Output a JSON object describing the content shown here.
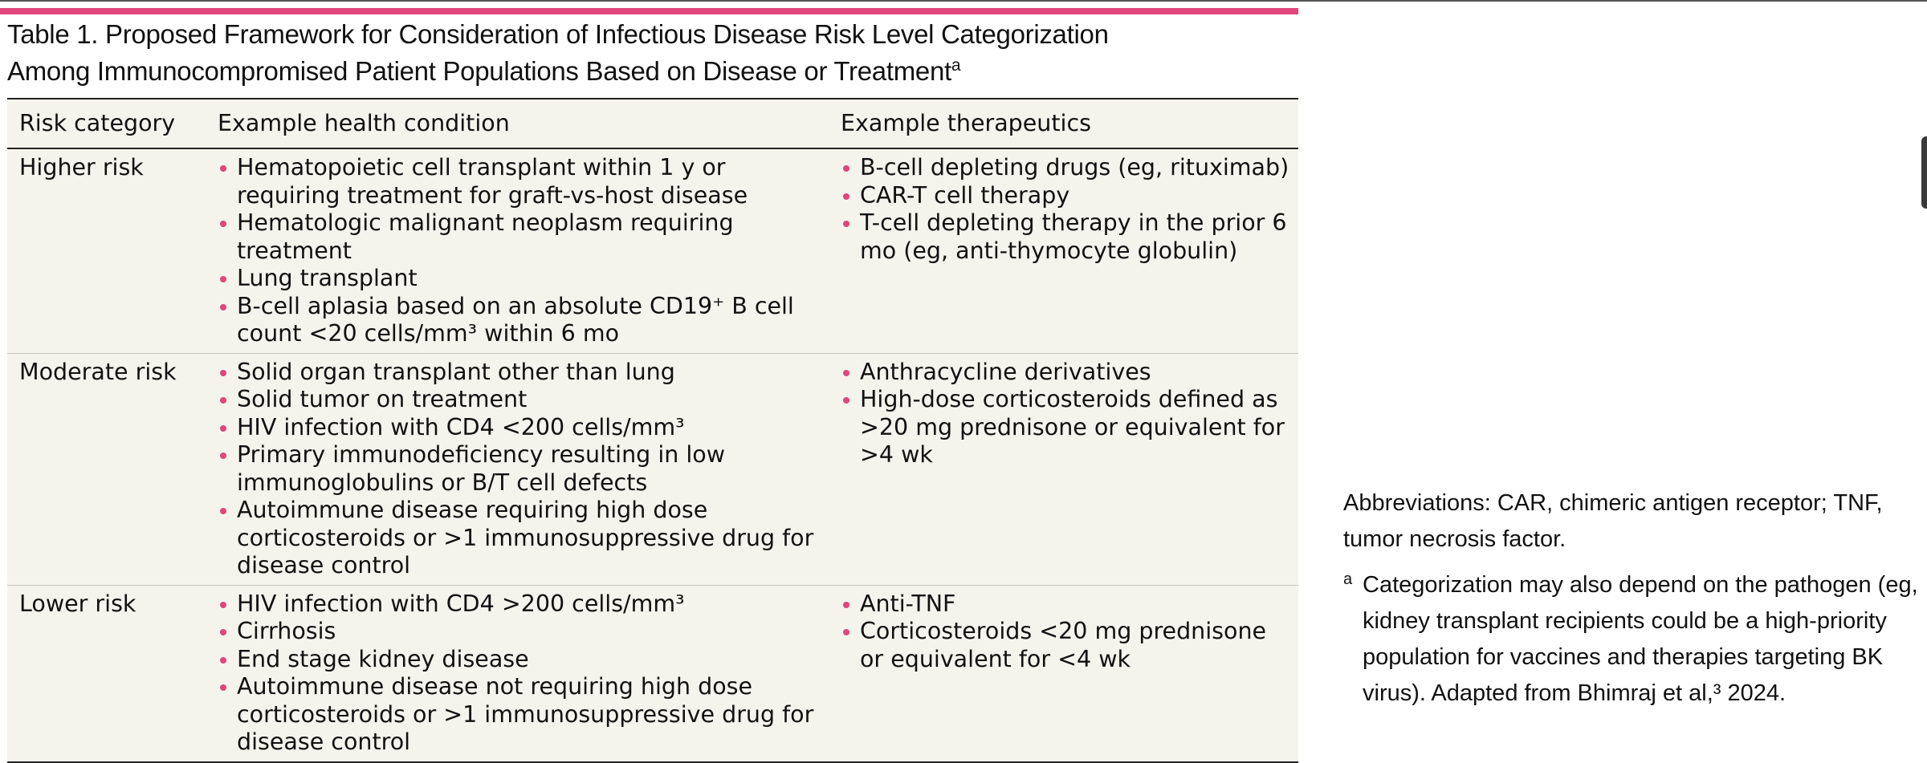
{
  "title": {
    "line1": "Table 1. Proposed Framework for Consideration of Infectious Disease Risk Level Categorization",
    "line2": "Among Immunocompromised Patient Populations Based on Disease or Treatment",
    "marker": "a"
  },
  "headers": {
    "risk": "Risk category",
    "condition": "Example health condition",
    "therapeutics": "Example therapeutics"
  },
  "rows": [
    {
      "category": "Higher risk",
      "conditions": [
        "Hematopoietic cell transplant within 1 y or requiring treatment for graft-vs-host disease",
        "Hematologic malignant neoplasm requiring treatment",
        "Lung transplant",
        "B-cell aplasia based on an absolute CD19⁺ B cell count <20 cells/mm³ within 6 mo"
      ],
      "therapeutics": [
        "B-cell depleting drugs (eg, rituximab)",
        "CAR-T cell therapy",
        "T-cell depleting therapy in the prior 6 mo (eg, anti-thymocyte globulin)"
      ]
    },
    {
      "category": "Moderate risk",
      "conditions": [
        "Solid organ transplant other than lung",
        "Solid tumor on treatment",
        "HIV infection with CD4 <200 cells/mm³",
        "Primary immunodeficiency resulting in low immunoglobulins or B/T cell defects",
        "Autoimmune disease requiring high dose corticosteroids or >1 immunosuppressive drug for disease control"
      ],
      "therapeutics": [
        "Anthracycline derivatives",
        "High-dose corticosteroids defined as >20 mg prednisone or equivalent for >4 wk"
      ]
    },
    {
      "category": "Lower risk",
      "conditions": [
        "HIV infection with CD4 >200 cells/mm³",
        "Cirrhosis",
        "End stage kidney disease",
        "Autoimmune disease not requiring high dose corticosteroids or >1 immunosuppressive drug for disease control"
      ],
      "therapeutics": [
        "Anti-TNF",
        "Corticosteroids <20 mg prednisone or equivalent for <4 wk"
      ]
    }
  ],
  "notes": {
    "abbreviations": "Abbreviations: CAR, chimeric antigen receptor; TNF, tumor necrosis factor.",
    "footnote_marker": "a",
    "footnote_text": "Categorization may also depend on the pathogen (eg, kidney transplant recipients could be a high-priority population for vaccines and therapies targeting BK virus). Adapted from Bhimraj et al,³ 2024."
  },
  "colors": {
    "accent": "#e0457b",
    "table_background": "#f5f4ec"
  }
}
